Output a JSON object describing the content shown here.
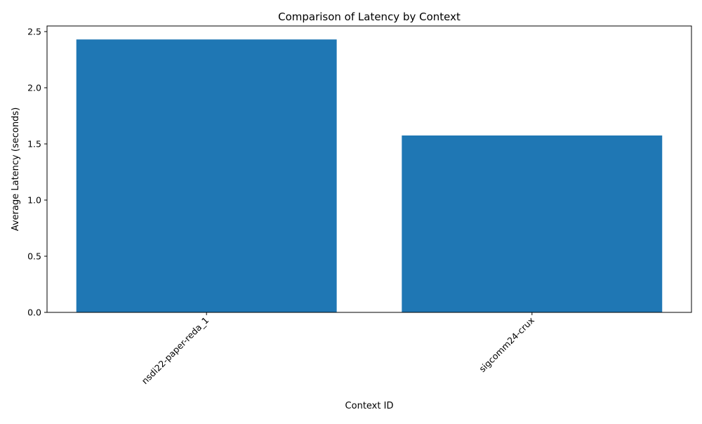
{
  "chart_data": {
    "type": "bar",
    "title": "Comparison of Latency by Context",
    "xlabel": "Context ID",
    "ylabel": "Average Latency (seconds)",
    "categories": [
      "nsdi22-paper-reda_1",
      "sigcomm24-crux"
    ],
    "values": [
      2.43,
      1.575
    ],
    "ylim": [
      0,
      2.55
    ],
    "yticks": [
      0.0,
      0.5,
      1.0,
      1.5,
      2.0,
      2.5
    ],
    "ytick_labels": [
      "0.0",
      "0.5",
      "1.0",
      "1.5",
      "2.0",
      "2.5"
    ],
    "xtick_rotation_deg": 45,
    "grid": false,
    "legend": "none",
    "bar_color": "#1f77b4"
  }
}
